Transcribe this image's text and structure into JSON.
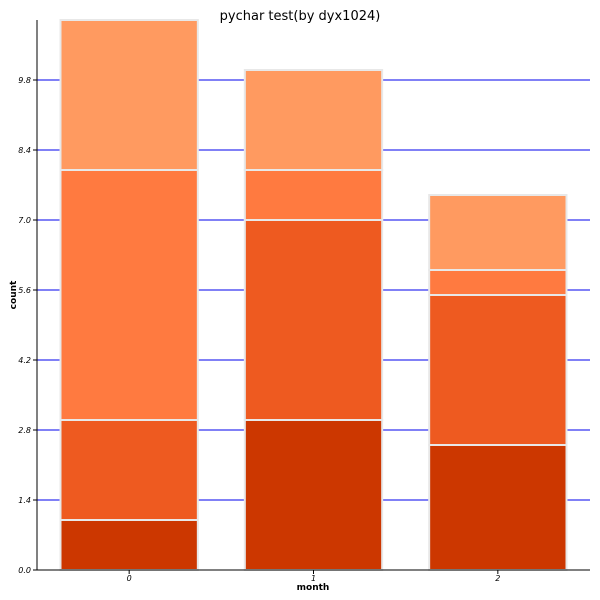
{
  "chart_data": {
    "type": "bar",
    "stacked": true,
    "title": "pychar test(by dyx1024)",
    "xlabel": "month",
    "ylabel": "count",
    "categories": [
      "0",
      "1",
      "2"
    ],
    "ylim": [
      0,
      11
    ],
    "yticks": [
      "0.0",
      "1.4",
      "2.8",
      "4.2",
      "5.6",
      "7.0",
      "8.4",
      "9.8"
    ],
    "ytick_values": [
      0,
      1.4,
      2.8,
      4.2,
      5.6,
      7.0,
      8.4,
      9.8
    ],
    "grid": true,
    "grid_color": "#0000ee",
    "series": [
      {
        "values": [
          1.0,
          3.0,
          2.5
        ],
        "color": "#cc3700"
      },
      {
        "values": [
          2.0,
          4.0,
          3.0
        ],
        "color": "#ee5a20"
      },
      {
        "values": [
          5.0,
          1.0,
          0.5
        ],
        "color": "#ff7a40"
      },
      {
        "values": [
          3.0,
          2.0,
          1.5
        ],
        "color": "#ff9a60"
      }
    ]
  }
}
